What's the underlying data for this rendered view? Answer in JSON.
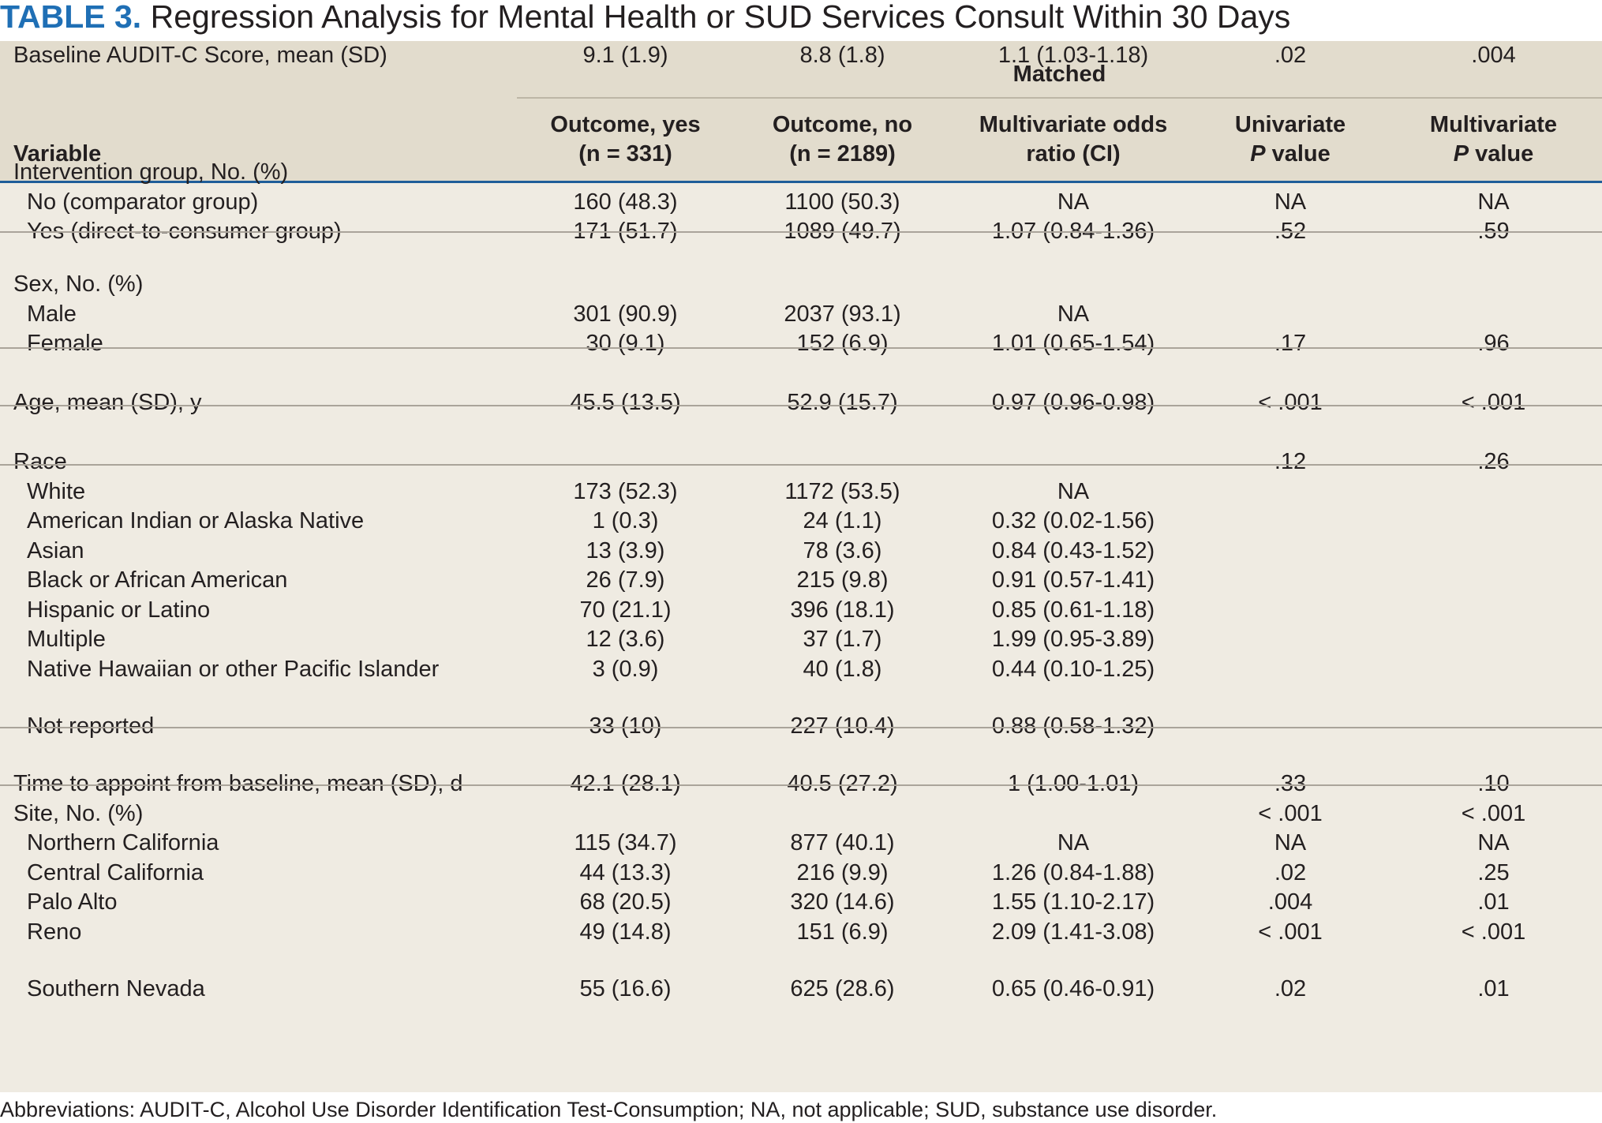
{
  "title": {
    "label": "TABLE 3.",
    "text": "Regression Analysis for Mental Health or SUD Services Consult Within 30 Days"
  },
  "header": {
    "matched": "Matched",
    "variable": "Variable",
    "outcome_yes_line1": "Outcome, yes",
    "outcome_yes_line2": "(n = 331)",
    "outcome_no_line1": "Outcome, no",
    "outcome_no_line2": "(n = 2189)",
    "odds_line1": "Multivariate odds",
    "odds_line2": "ratio (CI)",
    "univariate_line1": "Univariate",
    "univariate_p": "P",
    "univariate_rest": " value",
    "multivariate_line1": "Multivariate",
    "multivariate_p": "P",
    "multivariate_rest": " value"
  },
  "rows": [
    {
      "label": "Intervention group, No. (%)",
      "sub": false,
      "yes": "",
      "no": "",
      "or": "",
      "up": "",
      "mp": ""
    },
    {
      "label": "No (comparator group)",
      "sub": true,
      "yes": "160 (48.3)",
      "no": "1100 (50.3)",
      "or": "NA",
      "up": "NA",
      "mp": "NA"
    },
    {
      "label": "Yes (direct-to-consumer group)",
      "sub": true,
      "yes": "171 (51.7)",
      "no": "1089 (49.7)",
      "or": "1.07 (0.84-1.36)",
      "up": ".52",
      "mp": ".59"
    },
    {
      "label": "Sex, No. (%)",
      "sub": false,
      "yes": "",
      "no": "",
      "or": "",
      "up": "",
      "mp": ""
    },
    {
      "label": "Male",
      "sub": true,
      "yes": "301 (90.9)",
      "no": "2037 (93.1)",
      "or": "NA",
      "up": "",
      "mp": ""
    },
    {
      "label": "Female",
      "sub": true,
      "yes": "30 (9.1)",
      "no": "152 (6.9)",
      "or": "1.01 (0.65-1.54)",
      "up": ".17",
      "mp": ".96"
    },
    {
      "label": "Age, mean (SD), y",
      "sub": false,
      "yes": "45.5 (13.5)",
      "no": "52.9 (15.7)",
      "or": "0.97 (0.96-0.98)",
      "up": "< .001",
      "mp": "< .001"
    },
    {
      "label": "Race",
      "sub": false,
      "yes": "",
      "no": "",
      "or": "",
      "up": ".12",
      "mp": ".26"
    },
    {
      "label": "White",
      "sub": true,
      "yes": "173 (52.3)",
      "no": "1172 (53.5)",
      "or": "NA",
      "up": "",
      "mp": ""
    },
    {
      "label": "American Indian or Alaska Native",
      "sub": true,
      "yes": "1 (0.3)",
      "no": "24 (1.1)",
      "or": "0.32 (0.02-1.56)",
      "up": "",
      "mp": ""
    },
    {
      "label": "Asian",
      "sub": true,
      "yes": "13 (3.9)",
      "no": "78 (3.6)",
      "or": "0.84 (0.43-1.52)",
      "up": "",
      "mp": ""
    },
    {
      "label": "Black or African American",
      "sub": true,
      "yes": "26 (7.9)",
      "no": "215 (9.8)",
      "or": "0.91 (0.57-1.41)",
      "up": "",
      "mp": ""
    },
    {
      "label": "Hispanic or Latino",
      "sub": true,
      "yes": "70 (21.1)",
      "no": "396 (18.1)",
      "or": "0.85 (0.61-1.18)",
      "up": "",
      "mp": ""
    },
    {
      "label": "Multiple",
      "sub": true,
      "yes": "12 (3.6)",
      "no": "37 (1.7)",
      "or": "1.99 (0.95-3.89)",
      "up": "",
      "mp": ""
    },
    {
      "label": "Native Hawaiian or other Pacific Islander",
      "sub": true,
      "yes": "3 (0.9)",
      "no": "40 (1.8)",
      "or": "0.44 (0.10-1.25)",
      "up": "",
      "mp": ""
    },
    {
      "label": "Not reported",
      "sub": true,
      "yes": "33 (10)",
      "no": "227 (10.4)",
      "or": "0.88 (0.58-1.32)",
      "up": "",
      "mp": ""
    },
    {
      "label": "Time to appoint from baseline, mean (SD), d",
      "sub": false,
      "yes": "42.1 (28.1)",
      "no": "40.5 (27.2)",
      "or": "1 (1.00-1.01)",
      "up": ".33",
      "mp": ".10"
    },
    {
      "label": "Site, No. (%)",
      "sub": false,
      "yes": "",
      "no": "",
      "or": "",
      "up": "< .001",
      "mp": "< .001"
    },
    {
      "label": "Northern California",
      "sub": true,
      "yes": "115 (34.7)",
      "no": "877 (40.1)",
      "or": "NA",
      "up": "NA",
      "mp": "NA"
    },
    {
      "label": "Central California",
      "sub": true,
      "yes": "44 (13.3)",
      "no": "216 (9.9)",
      "or": "1.26 (0.84-1.88)",
      "up": ".02",
      "mp": ".25"
    },
    {
      "label": "Palo Alto",
      "sub": true,
      "yes": "68 (20.5)",
      "no": "320 (14.6)",
      "or": "1.55 (1.10-2.17)",
      "up": ".004",
      "mp": ".01"
    },
    {
      "label": "Reno",
      "sub": true,
      "yes": "49 (14.8)",
      "no": "151 (6.9)",
      "or": "2.09 (1.41-3.08)",
      "up": "< .001",
      "mp": "< .001"
    },
    {
      "label": "Southern Nevada",
      "sub": true,
      "yes": "55 (16.6)",
      "no": "625 (28.6)",
      "or": "0.65 (0.46-0.91)",
      "up": ".02",
      "mp": ".01"
    },
    {
      "label": "Baseline AUDIT-C Score, mean (SD)",
      "sub": false,
      "yes": "9.1 (1.9)",
      "no": "8.8 (1.8)",
      "or": "1.1 (1.03-1.18)",
      "up": ".02",
      "mp": ".004"
    }
  ],
  "footnote": "Abbreviations: AUDIT-C, Alcohol Use Disorder Identification Test-Consumption; NA, not applicable; SUD, substance use disorder."
}
